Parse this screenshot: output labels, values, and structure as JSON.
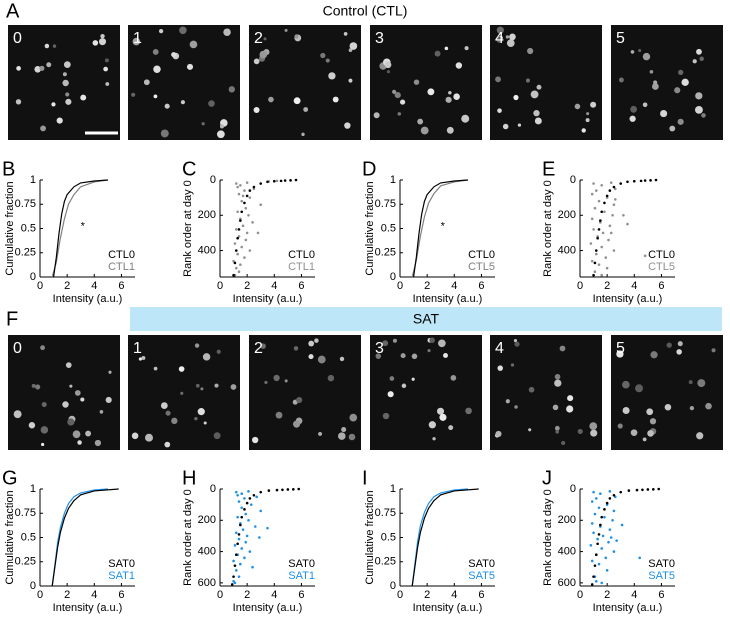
{
  "figure": {
    "panel_a": "A",
    "title_a": "Control (CTL)",
    "frames_a": [
      "0",
      "1",
      "2",
      "3",
      "4",
      "5"
    ],
    "panel_f": "F",
    "title_f": "SAT",
    "frames_f": [
      "0",
      "1",
      "2",
      "3",
      "4",
      "5"
    ]
  },
  "chart_data": [
    {
      "type": "line",
      "label": "B",
      "xlabel": "Intensity (a.u.)",
      "ylabel": "Cumulative fraction",
      "annotation": "*",
      "xlim": [
        0,
        7
      ],
      "xticks": [
        0,
        2,
        4,
        6
      ],
      "ylim": [
        0,
        1
      ],
      "yticks": [
        0,
        0.25,
        0.5,
        0.75,
        1
      ],
      "legend": "lower right",
      "series": [
        {
          "name": "CTL0",
          "color": "#000000",
          "x": [
            1.0,
            1.2,
            1.4,
            1.6,
            1.8,
            2.0,
            2.5,
            3.0,
            4.0,
            5.0
          ],
          "values": [
            0,
            0.2,
            0.45,
            0.65,
            0.78,
            0.85,
            0.93,
            0.97,
            0.99,
            1
          ]
        },
        {
          "name": "CTL1",
          "color": "#808080",
          "x": [
            0.9,
            1.2,
            1.5,
            1.8,
            2.1,
            2.5,
            3.0,
            4.0,
            5.0
          ],
          "values": [
            0,
            0.15,
            0.4,
            0.6,
            0.75,
            0.85,
            0.93,
            0.98,
            1
          ]
        }
      ]
    },
    {
      "type": "scatter",
      "label": "C",
      "xlabel": "Intensity (a.u.)",
      "ylabel": "Rank order at day 0",
      "xlim": [
        0,
        7
      ],
      "xticks": [
        0,
        2,
        4,
        6
      ],
      "ylim": [
        550,
        0
      ],
      "yticks": [
        0,
        200,
        400
      ],
      "legend": "lower right",
      "series": [
        {
          "name": "CTL0",
          "color": "#000000",
          "x": [
            5.6,
            5.2,
            4.8,
            4.5,
            4.0,
            3.5,
            3.0,
            2.5,
            2.2,
            2.0,
            1.8,
            1.6,
            1.5,
            1.4,
            1.3,
            1.2,
            1.1,
            1.0
          ],
          "values": [
            0,
            2,
            3,
            5,
            7,
            10,
            20,
            40,
            60,
            90,
            130,
            180,
            230,
            280,
            330,
            400,
            470,
            540
          ]
        },
        {
          "name": "CTL1",
          "color": "#909090",
          "x": [
            1.2,
            1.5,
            2.0,
            1.8,
            2.5,
            1.4,
            2.2,
            1.6,
            3.0,
            1.9,
            1.3,
            2.1,
            1.5,
            2.4,
            1.7,
            1.2,
            2.0,
            2.8,
            1.4,
            1.9,
            1.1,
            1.6,
            2.2,
            1.3,
            1.8,
            1.0,
            1.5,
            1.2,
            1.4,
            1.1,
            4.2,
            3.6,
            1.3,
            1.7
          ],
          "values": [
            20,
            30,
            15,
            60,
            50,
            80,
            100,
            120,
            140,
            160,
            180,
            200,
            220,
            240,
            260,
            280,
            300,
            300,
            320,
            340,
            360,
            380,
            400,
            420,
            440,
            460,
            480,
            500,
            520,
            540,
            5,
            8,
            40,
            90
          ]
        }
      ]
    },
    {
      "type": "line",
      "label": "D",
      "xlabel": "Intensity (a.u.)",
      "ylabel": "Cumulative fraction",
      "annotation": "*",
      "xlim": [
        0,
        7
      ],
      "xticks": [
        0,
        2,
        4,
        6
      ],
      "ylim": [
        0,
        1
      ],
      "yticks": [
        0,
        0.25,
        0.5,
        0.75,
        1
      ],
      "legend": "lower right",
      "series": [
        {
          "name": "CTL0",
          "color": "#000000",
          "x": [
            1.0,
            1.2,
            1.4,
            1.6,
            1.8,
            2.0,
            2.5,
            3.0,
            4.0,
            5.0
          ],
          "values": [
            0,
            0.2,
            0.45,
            0.65,
            0.78,
            0.85,
            0.93,
            0.97,
            0.99,
            1
          ]
        },
        {
          "name": "CTL5",
          "color": "#808080",
          "x": [
            0.9,
            1.2,
            1.5,
            1.8,
            2.1,
            2.5,
            3.0,
            4.0,
            5.0
          ],
          "values": [
            0,
            0.17,
            0.42,
            0.62,
            0.76,
            0.86,
            0.94,
            0.98,
            1
          ]
        }
      ]
    },
    {
      "type": "scatter",
      "label": "E",
      "xlabel": "Intensity (a.u.)",
      "ylabel": "Rank order at day 0",
      "xlim": [
        0,
        7
      ],
      "xticks": [
        0,
        2,
        4,
        6
      ],
      "ylim": [
        550,
        0
      ],
      "yticks": [
        0,
        200,
        400
      ],
      "legend": "lower right",
      "series": [
        {
          "name": "CTL0",
          "color": "#000000",
          "x": [
            5.6,
            5.2,
            4.8,
            4.5,
            4.0,
            3.5,
            3.0,
            2.5,
            2.2,
            2.0,
            1.8,
            1.6,
            1.5,
            1.4,
            1.3,
            1.2,
            1.1,
            1.0
          ],
          "values": [
            0,
            2,
            3,
            5,
            7,
            10,
            20,
            40,
            60,
            90,
            130,
            180,
            230,
            280,
            330,
            400,
            470,
            540
          ]
        },
        {
          "name": "CTL5",
          "color": "#909090",
          "x": [
            1.0,
            1.6,
            2.3,
            1.2,
            2.6,
            0.9,
            2.0,
            1.4,
            2.5,
            1.1,
            1.8,
            2.4,
            0.9,
            1.5,
            2.2,
            1.0,
            1.7,
            2.3,
            1.3,
            2.1,
            0.8,
            1.6,
            2.5,
            1.2,
            1.9,
            0.9,
            1.4,
            2.0,
            1.1,
            1.6,
            3.2,
            3.5,
            4.8,
            2.6
          ],
          "values": [
            20,
            30,
            15,
            60,
            50,
            80,
            100,
            120,
            140,
            160,
            180,
            200,
            220,
            240,
            260,
            280,
            300,
            300,
            320,
            340,
            360,
            380,
            400,
            420,
            440,
            460,
            480,
            500,
            520,
            540,
            200,
            250,
            430,
            110
          ]
        }
      ]
    },
    {
      "type": "line",
      "label": "G",
      "xlabel": "Intensity (a.u.)",
      "ylabel": "Cumulative fraction",
      "xlim": [
        0,
        7
      ],
      "xticks": [
        0,
        2,
        4,
        6
      ],
      "ylim": [
        0,
        1
      ],
      "yticks": [
        0,
        0.25,
        0.5,
        0.75,
        1
      ],
      "legend": "lower right",
      "series": [
        {
          "name": "SAT0",
          "color": "#000000",
          "x": [
            0.9,
            1.1,
            1.3,
            1.5,
            1.8,
            2.1,
            2.5,
            3.0,
            4.0,
            5.8
          ],
          "values": [
            0,
            0.2,
            0.4,
            0.55,
            0.7,
            0.8,
            0.88,
            0.94,
            0.98,
            1
          ]
        },
        {
          "name": "SAT1",
          "color": "#1e90e6",
          "x": [
            0.9,
            1.1,
            1.3,
            1.5,
            1.8,
            2.1,
            2.5,
            3.0,
            4.0,
            5.0
          ],
          "values": [
            0,
            0.22,
            0.45,
            0.6,
            0.75,
            0.85,
            0.92,
            0.96,
            0.99,
            1
          ]
        }
      ]
    },
    {
      "type": "scatter",
      "label": "H",
      "xlabel": "Intensity (a.u.)",
      "ylabel": "Rank order at day 0",
      "xlim": [
        0,
        7
      ],
      "xticks": [
        0,
        2,
        4,
        6
      ],
      "ylim": [
        620,
        0
      ],
      "yticks": [
        0,
        200,
        400,
        600
      ],
      "legend": "lower right",
      "series": [
        {
          "name": "SAT0",
          "color": "#000000",
          "x": [
            5.8,
            5.4,
            5.0,
            4.6,
            4.2,
            3.6,
            3.0,
            2.5,
            2.2,
            2.0,
            1.8,
            1.6,
            1.5,
            1.4,
            1.3,
            1.2,
            1.1,
            1.0,
            0.9
          ],
          "values": [
            0,
            2,
            3,
            5,
            7,
            10,
            20,
            40,
            60,
            90,
            130,
            180,
            230,
            290,
            350,
            420,
            490,
            560,
            610
          ]
        },
        {
          "name": "SAT1",
          "color": "#1e90e6",
          "x": [
            1.2,
            1.6,
            2.1,
            1.8,
            2.7,
            1.4,
            2.3,
            1.6,
            3.0,
            1.9,
            1.3,
            2.1,
            1.5,
            2.6,
            1.7,
            1.2,
            2.0,
            2.9,
            1.4,
            1.9,
            1.1,
            1.6,
            2.2,
            1.3,
            1.8,
            1.0,
            1.5,
            1.2,
            1.4,
            1.1,
            3.5,
            2.4,
            1.0,
            1.3
          ],
          "values": [
            20,
            30,
            15,
            60,
            50,
            80,
            100,
            120,
            140,
            160,
            180,
            200,
            220,
            240,
            260,
            280,
            300,
            310,
            320,
            340,
            360,
            380,
            400,
            420,
            440,
            460,
            480,
            520,
            560,
            600,
            250,
            500,
            590,
            40
          ]
        }
      ]
    },
    {
      "type": "line",
      "label": "I",
      "xlabel": "Intensity (a.u.)",
      "ylabel": "Cumulative fraction",
      "xlim": [
        0,
        7
      ],
      "xticks": [
        0,
        2,
        4,
        6
      ],
      "ylim": [
        0,
        1
      ],
      "yticks": [
        0,
        0.25,
        0.5,
        0.75,
        1
      ],
      "legend": "lower right",
      "series": [
        {
          "name": "SAT0",
          "color": "#000000",
          "x": [
            0.9,
            1.1,
            1.3,
            1.5,
            1.8,
            2.1,
            2.5,
            3.0,
            4.0,
            5.8
          ],
          "values": [
            0,
            0.2,
            0.4,
            0.55,
            0.7,
            0.8,
            0.88,
            0.94,
            0.98,
            1
          ]
        },
        {
          "name": "SAT5",
          "color": "#1e90e6",
          "x": [
            0.9,
            1.1,
            1.3,
            1.5,
            1.8,
            2.1,
            2.5,
            3.0,
            4.0,
            5.0
          ],
          "values": [
            0,
            0.23,
            0.46,
            0.62,
            0.76,
            0.85,
            0.92,
            0.96,
            0.99,
            1
          ]
        }
      ]
    },
    {
      "type": "scatter",
      "label": "J",
      "xlabel": "Intensity (a.u.)",
      "ylabel": "Rank order at day 0",
      "xlim": [
        0,
        7
      ],
      "xticks": [
        0,
        2,
        4,
        6
      ],
      "ylim": [
        620,
        0
      ],
      "yticks": [
        0,
        200,
        400,
        600
      ],
      "legend": "lower right",
      "series": [
        {
          "name": "SAT0",
          "color": "#000000",
          "x": [
            5.8,
            5.4,
            5.0,
            4.6,
            4.2,
            3.6,
            3.0,
            2.5,
            2.2,
            2.0,
            1.8,
            1.6,
            1.5,
            1.4,
            1.3,
            1.2,
            1.1,
            1.0,
            0.9
          ],
          "values": [
            0,
            2,
            3,
            5,
            7,
            10,
            20,
            40,
            60,
            90,
            130,
            180,
            230,
            290,
            350,
            420,
            490,
            560,
            610
          ]
        },
        {
          "name": "SAT5",
          "color": "#1e90e6",
          "x": [
            1.0,
            1.5,
            2.2,
            1.2,
            2.6,
            0.9,
            2.0,
            1.4,
            2.5,
            1.1,
            1.8,
            2.4,
            0.9,
            1.5,
            2.2,
            1.0,
            1.7,
            2.3,
            1.3,
            2.1,
            0.8,
            1.6,
            2.5,
            1.2,
            1.9,
            0.9,
            1.4,
            2.0,
            1.1,
            1.6,
            3.1,
            4.4,
            2.7,
            1.2
          ],
          "values": [
            20,
            30,
            15,
            60,
            50,
            80,
            100,
            120,
            140,
            160,
            180,
            200,
            220,
            240,
            260,
            280,
            300,
            310,
            320,
            340,
            360,
            380,
            400,
            420,
            440,
            460,
            480,
            520,
            560,
            600,
            230,
            440,
            330,
            590
          ]
        }
      ]
    }
  ]
}
